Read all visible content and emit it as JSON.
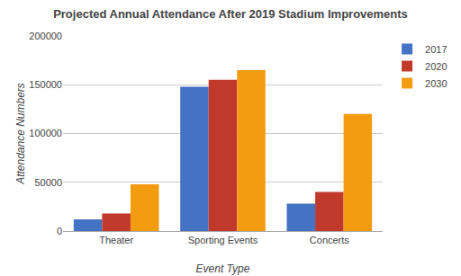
{
  "chart_data": {
    "type": "bar",
    "title": "Projected Annual Attendance After 2019 Stadium Improvements",
    "xlabel": "Event Type",
    "ylabel": "Attendance Numbers",
    "categories": [
      "Theater",
      "Sporting Events",
      "Concerts"
    ],
    "series": [
      {
        "name": "2017",
        "color": "#4472c4",
        "values": [
          12000,
          148000,
          28000
        ]
      },
      {
        "name": "2020",
        "color": "#c0392b",
        "values": [
          18000,
          155000,
          40000
        ]
      },
      {
        "name": "2030",
        "color": "#f39c12",
        "values": [
          48000,
          165000,
          120000
        ]
      }
    ],
    "ylim": [
      0,
      200000
    ],
    "yticks": [
      0,
      50000,
      100000,
      150000,
      200000
    ],
    "grid": true,
    "legend": "upper right"
  }
}
